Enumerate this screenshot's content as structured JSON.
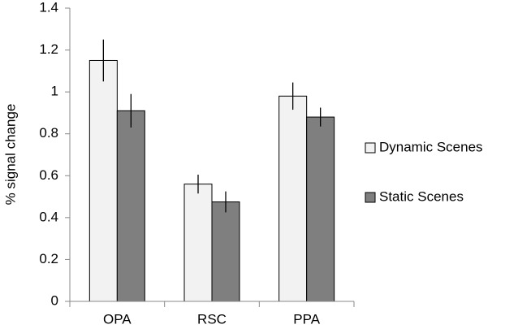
{
  "chart_data": {
    "type": "bar",
    "y_label": "% signal change",
    "categories": [
      "OPA",
      "RSC",
      "PPA"
    ],
    "series": [
      {
        "name": "Dynamic Scenes",
        "color": "#f2f2f2",
        "values": [
          1.15,
          0.56,
          0.98
        ],
        "errors": [
          0.1,
          0.045,
          0.065
        ]
      },
      {
        "name": "Static Scenes",
        "color": "#7f7f7f",
        "values": [
          0.91,
          0.475,
          0.88
        ],
        "errors": [
          0.08,
          0.05,
          0.045
        ]
      }
    ],
    "ylim": [
      0,
      1.4
    ],
    "yticks": [
      0,
      0.2,
      0.4,
      0.6,
      0.8,
      1,
      1.2,
      1.4
    ],
    "grid": false,
    "legend": "right"
  }
}
